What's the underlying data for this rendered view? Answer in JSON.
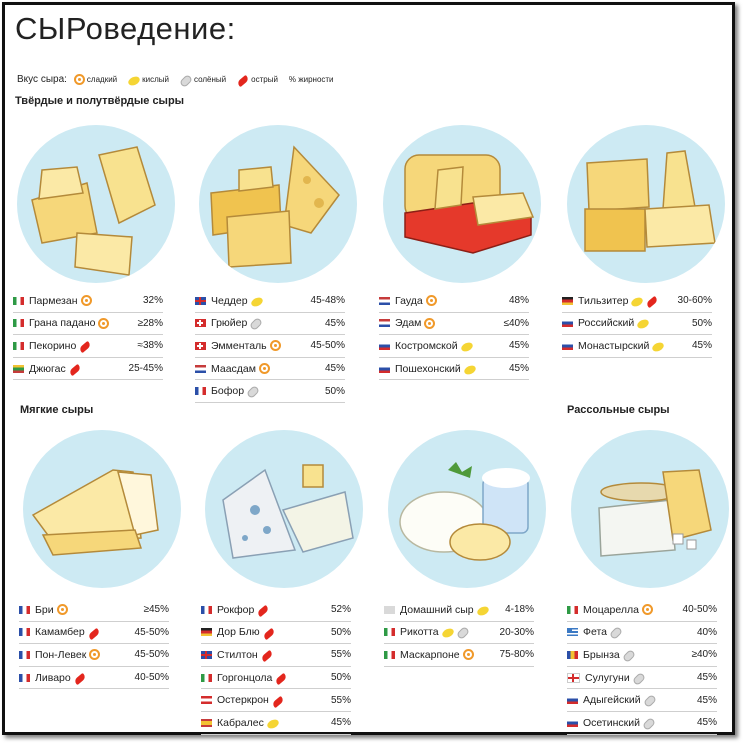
{
  "title": "СЫРоведение:",
  "legend": {
    "label": "Вкус сыра:",
    "items": [
      {
        "icon": "sweet-icon",
        "label": "сладкий"
      },
      {
        "icon": "sour-icon",
        "label": "кислый"
      },
      {
        "icon": "salty-icon",
        "label": "солёный"
      },
      {
        "icon": "hot-icon",
        "label": "острый"
      },
      {
        "icon": "",
        "label": "% жирности"
      }
    ]
  },
  "sections": {
    "hard": "Твёрдые и полутвёрдые сыры",
    "soft": "Мягкие сыры",
    "brine": "Рассольные сыры"
  },
  "colors": {
    "circle": "#cdeaf3",
    "cheese": "#f6d77a",
    "rind": "#e5392b",
    "sweet": "#f0992a",
    "sour": "#f5d534",
    "hot": "#e3261d"
  },
  "groups": [
    {
      "rows": [
        {
          "flag": "it",
          "name": "Пармезан",
          "icons": [
            "sweet"
          ],
          "pct": "32%"
        },
        {
          "flag": "it",
          "name": "Грана падано",
          "icons": [
            "sweet"
          ],
          "pct": "≥28%"
        },
        {
          "flag": "it",
          "name": "Пекорино",
          "icons": [
            "hot"
          ],
          "pct": "≈38%"
        },
        {
          "flag": "lt",
          "name": "Джюгас",
          "icons": [
            "hot"
          ],
          "pct": "25-45%"
        }
      ]
    },
    {
      "rows": [
        {
          "flag": "gb",
          "name": "Чеддер",
          "icons": [
            "sour"
          ],
          "pct": "45-48%"
        },
        {
          "flag": "ch",
          "name": "Грюйер",
          "icons": [
            "salt"
          ],
          "pct": "45%"
        },
        {
          "flag": "ch",
          "name": "Эмменталь",
          "icons": [
            "sweet"
          ],
          "pct": "45-50%"
        },
        {
          "flag": "nl",
          "name": "Маасдам",
          "icons": [
            "sweet"
          ],
          "pct": "45%"
        },
        {
          "flag": "fr",
          "name": "Бофор",
          "icons": [
            "salt"
          ],
          "pct": "50%"
        }
      ]
    },
    {
      "rows": [
        {
          "flag": "nl",
          "name": "Гауда",
          "icons": [
            "sweet"
          ],
          "pct": "48%"
        },
        {
          "flag": "nl",
          "name": "Эдам",
          "icons": [
            "sweet"
          ],
          "pct": "≤40%"
        },
        {
          "flag": "ru",
          "name": "Костромской",
          "icons": [
            "sour"
          ],
          "pct": "45%"
        },
        {
          "flag": "ru",
          "name": "Пошехонский",
          "icons": [
            "sour"
          ],
          "pct": "45%"
        }
      ]
    },
    {
      "rows": [
        {
          "flag": "de",
          "name": "Тильзитер",
          "icons": [
            "sour",
            "hot"
          ],
          "pct": "30-60%"
        },
        {
          "flag": "ru",
          "name": "Российский",
          "icons": [
            "sour"
          ],
          "pct": "50%"
        },
        {
          "flag": "ru",
          "name": "Монастырский",
          "icons": [
            "sour"
          ],
          "pct": "45%"
        }
      ]
    },
    {
      "rows": [
        {
          "flag": "fr",
          "name": "Бри",
          "icons": [
            "sweet"
          ],
          "pct": "≥45%"
        },
        {
          "flag": "fr",
          "name": "Камамбер",
          "icons": [
            "hot"
          ],
          "pct": "45-50%"
        },
        {
          "flag": "fr",
          "name": "Пон-Левек",
          "icons": [
            "sweet"
          ],
          "pct": "45-50%"
        },
        {
          "flag": "fr",
          "name": "Ливаро",
          "icons": [
            "hot"
          ],
          "pct": "40-50%"
        }
      ]
    },
    {
      "rows": [
        {
          "flag": "fr",
          "name": "Рокфор",
          "icons": [
            "hot"
          ],
          "pct": "52%"
        },
        {
          "flag": "de",
          "name": "Дор Блю",
          "icons": [
            "hot"
          ],
          "pct": "50%"
        },
        {
          "flag": "gb",
          "name": "Стилтон",
          "icons": [
            "hot"
          ],
          "pct": "55%"
        },
        {
          "flag": "it",
          "name": "Горгонцола",
          "icons": [
            "hot"
          ],
          "pct": "50%"
        },
        {
          "flag": "at",
          "name": "Остеркрон",
          "icons": [
            "hot"
          ],
          "pct": "55%"
        },
        {
          "flag": "es",
          "name": "Кабралес",
          "icons": [
            "sour"
          ],
          "pct": "45%"
        }
      ]
    },
    {
      "rows": [
        {
          "flag": "none",
          "name": "Домашний сыр",
          "icons": [
            "sour"
          ],
          "pct": "4-18%"
        },
        {
          "flag": "it",
          "name": "Рикотта",
          "icons": [
            "sour",
            "salt"
          ],
          "pct": "20-30%"
        },
        {
          "flag": "it",
          "name": "Маскарпоне",
          "icons": [
            "sweet"
          ],
          "pct": "75-80%"
        }
      ]
    },
    {
      "rows": [
        {
          "flag": "it",
          "name": "Моцарелла",
          "icons": [
            "sweet"
          ],
          "pct": "40-50%"
        },
        {
          "flag": "gr",
          "name": "Фета",
          "icons": [
            "salt"
          ],
          "pct": "40%"
        },
        {
          "flag": "ro",
          "name": "Брынза",
          "icons": [
            "salt"
          ],
          "pct": "≥40%"
        },
        {
          "flag": "ge",
          "name": "Сулугуни",
          "icons": [
            "salt"
          ],
          "pct": "45%"
        },
        {
          "flag": "ru",
          "name": "Адыгейский",
          "icons": [
            "salt"
          ],
          "pct": "45%"
        },
        {
          "flag": "ru",
          "name": "Осетинский",
          "icons": [
            "salt"
          ],
          "pct": "45%"
        }
      ]
    }
  ]
}
